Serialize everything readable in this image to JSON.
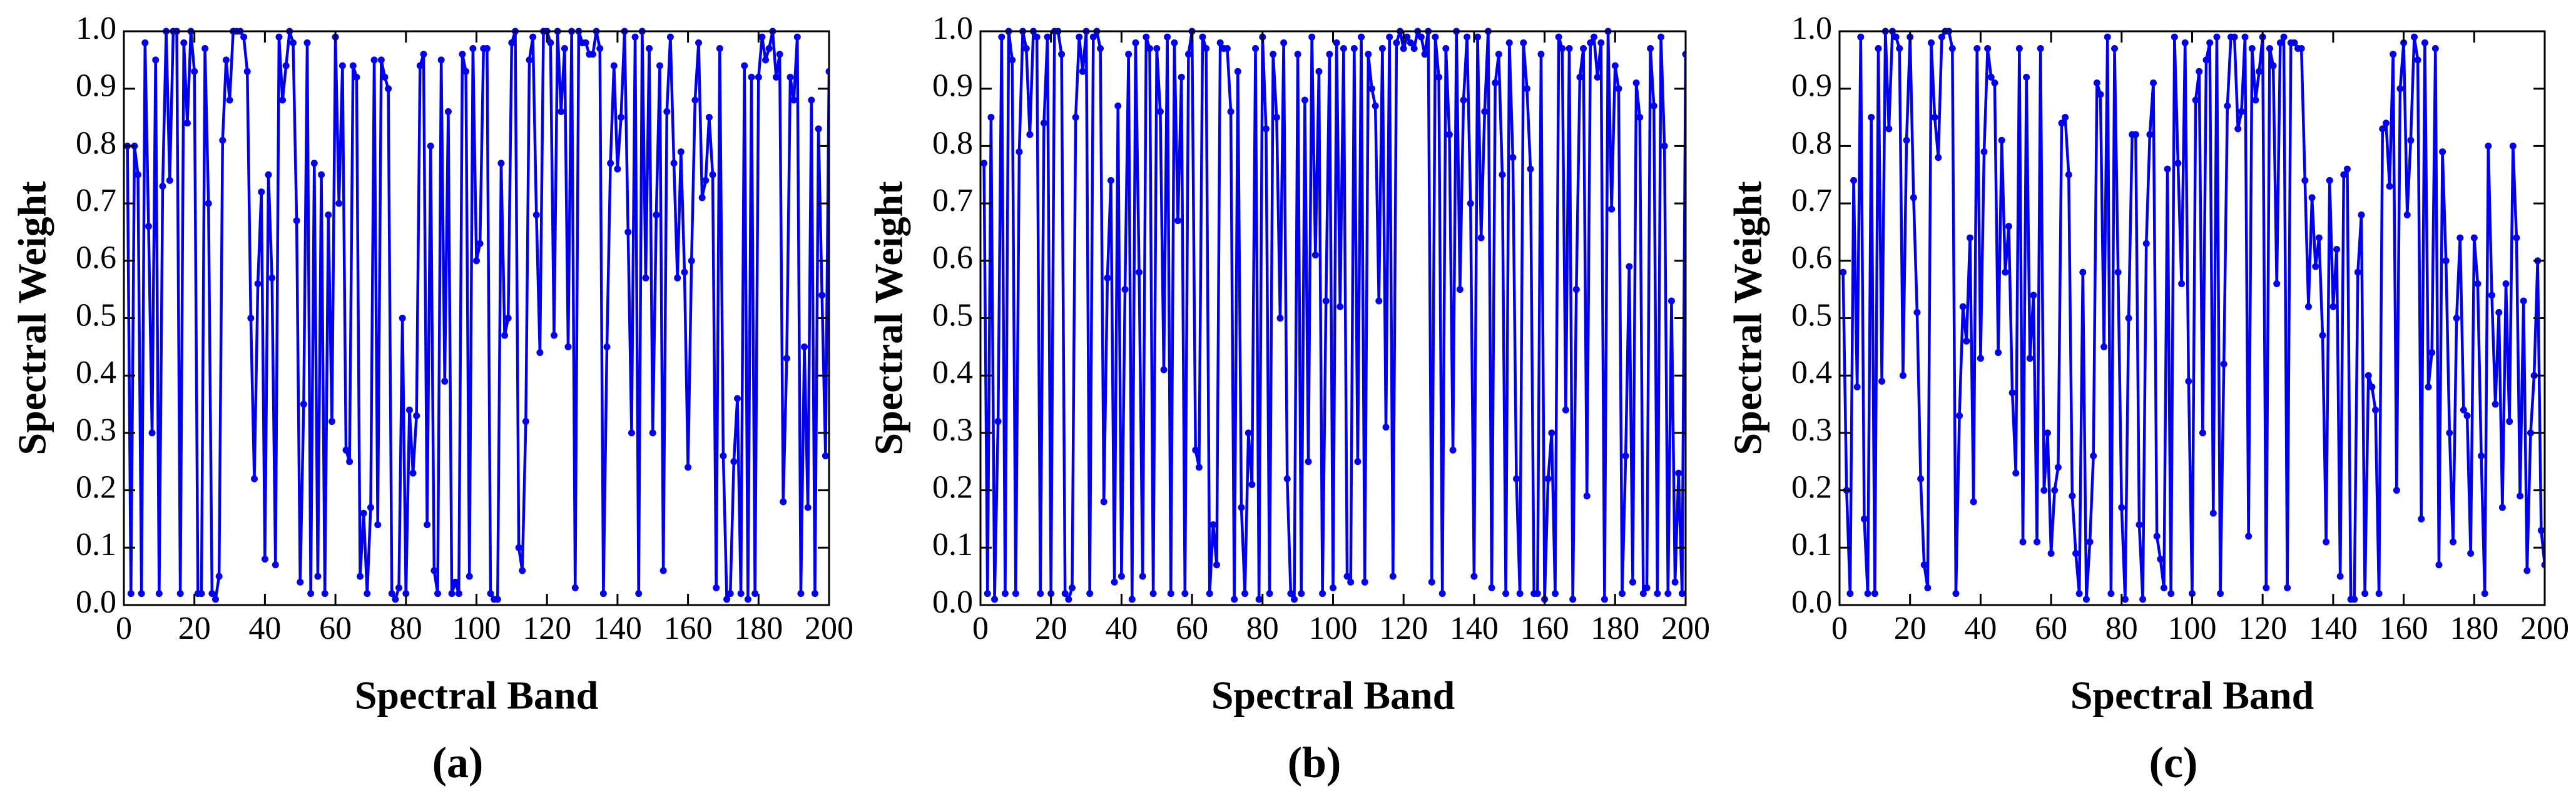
{
  "chart_data": [
    {
      "type": "line",
      "caption": "(a)",
      "xlabel": "Spectral Band",
      "ylabel": "Spectral Weight",
      "color": "#0000ee",
      "xlim": [
        0,
        200
      ],
      "xticks": [
        0,
        20,
        40,
        60,
        80,
        100,
        120,
        140,
        160,
        180,
        200
      ],
      "ylim": [
        0,
        1
      ],
      "yticks": [
        {
          "value": 0,
          "label": "0.0"
        },
        0.1,
        0.2,
        0.3,
        0.4,
        0.5,
        0.6,
        0.7,
        0.8,
        0.9,
        {
          "value": 1,
          "label": "1.0"
        }
      ],
      "x": [
        1,
        2,
        3,
        4,
        5,
        6,
        7,
        8,
        9,
        10,
        11,
        12,
        13,
        14,
        15,
        16,
        17,
        18,
        19,
        20,
        21,
        22,
        23,
        24,
        25,
        26,
        27,
        28,
        29,
        30,
        31,
        32,
        33,
        34,
        35,
        36,
        37,
        38,
        39,
        40,
        41,
        42,
        43,
        44,
        45,
        46,
        47,
        48,
        49,
        50,
        51,
        52,
        53,
        54,
        55,
        56,
        57,
        58,
        59,
        60,
        61,
        62,
        63,
        64,
        65,
        66,
        67,
        68,
        69,
        70,
        71,
        72,
        73,
        74,
        75,
        76,
        77,
        78,
        79,
        80,
        81,
        82,
        83,
        84,
        85,
        86,
        87,
        88,
        89,
        90,
        91,
        92,
        93,
        94,
        95,
        96,
        97,
        98,
        99,
        100,
        101,
        102,
        103,
        104,
        105,
        106,
        107,
        108,
        109,
        110,
        111,
        112,
        113,
        114,
        115,
        116,
        117,
        118,
        119,
        120,
        121,
        122,
        123,
        124,
        125,
        126,
        127,
        128,
        129,
        130,
        131,
        132,
        133,
        134,
        135,
        136,
        137,
        138,
        139,
        140,
        141,
        142,
        143,
        144,
        145,
        146,
        147,
        148,
        149,
        150,
        151,
        152,
        153,
        154,
        155,
        156,
        157,
        158,
        159,
        160,
        161,
        162,
        163,
        164,
        165,
        166,
        167,
        168,
        169,
        170,
        171,
        172,
        173,
        174,
        175,
        176,
        177,
        178,
        179,
        180,
        181,
        182,
        183,
        184,
        185,
        186,
        187,
        188,
        189,
        190,
        191,
        192,
        193,
        194,
        195,
        196,
        197,
        198,
        199,
        200
      ],
      "values": [
        0.8,
        0.02,
        0.8,
        0.75,
        0.02,
        0.98,
        0.66,
        0.3,
        0.95,
        0.02,
        0.73,
        1.0,
        0.74,
        1.0,
        1.0,
        0.02,
        0.98,
        0.84,
        1.0,
        0.93,
        0.02,
        0.02,
        0.97,
        0.7,
        0.02,
        0.01,
        0.05,
        0.81,
        0.95,
        0.88,
        1.0,
        1.0,
        1.0,
        0.99,
        0.93,
        0.5,
        0.22,
        0.56,
        0.72,
        0.08,
        0.75,
        0.57,
        0.07,
        0.99,
        0.88,
        0.94,
        1.0,
        0.98,
        0.67,
        0.04,
        0.35,
        0.98,
        0.02,
        0.77,
        0.05,
        0.75,
        0.02,
        0.68,
        0.32,
        0.99,
        0.7,
        0.94,
        0.27,
        0.25,
        0.94,
        0.92,
        0.05,
        0.16,
        0.02,
        0.17,
        0.95,
        0.14,
        0.95,
        0.92,
        0.9,
        0.02,
        0.01,
        0.03,
        0.5,
        0.02,
        0.34,
        0.23,
        0.33,
        0.94,
        0.96,
        0.14,
        0.8,
        0.06,
        0.02,
        0.95,
        0.39,
        0.86,
        0.02,
        0.04,
        0.02,
        0.96,
        0.93,
        0.05,
        0.97,
        0.6,
        0.63,
        0.97,
        0.97,
        0.02,
        0.01,
        0.01,
        0.77,
        0.47,
        0.5,
        0.98,
        1.0,
        0.1,
        0.06,
        0.32,
        0.95,
        0.99,
        0.68,
        0.44,
        1.0,
        1.0,
        0.98,
        0.47,
        1.0,
        0.86,
        0.97,
        0.45,
        1.0,
        0.03,
        1.0,
        0.98,
        0.98,
        0.96,
        0.96,
        1.0,
        0.97,
        0.02,
        0.45,
        0.77,
        0.94,
        0.76,
        0.85,
        1.0,
        0.65,
        0.3,
        0.99,
        0.02,
        1.0,
        0.57,
        0.97,
        0.3,
        0.68,
        0.94,
        0.06,
        0.86,
        0.99,
        0.77,
        0.57,
        0.79,
        0.58,
        0.24,
        0.6,
        0.88,
        0.98,
        0.71,
        0.74,
        0.85,
        0.75,
        0.03,
        0.97,
        0.26,
        0.01,
        0.02,
        0.25,
        0.36,
        0.02,
        0.94,
        0.01,
        0.92,
        0.02,
        0.92,
        0.99,
        0.95,
        0.97,
        1.0,
        0.92,
        0.96,
        0.18,
        0.43,
        0.92,
        0.88,
        0.99,
        0.02,
        0.45,
        0.17,
        0.88,
        0.02,
        0.83,
        0.54,
        0.26,
        0.93
      ]
    },
    {
      "type": "line",
      "caption": "(b)",
      "xlabel": "Spectral Band",
      "ylabel": "Spectral Weight",
      "color": "#0000ee",
      "xlim": [
        0,
        200
      ],
      "xticks": [
        0,
        20,
        40,
        60,
        80,
        100,
        120,
        140,
        160,
        180,
        200
      ],
      "ylim": [
        0,
        1
      ],
      "yticks": [
        {
          "value": 0,
          "label": "0.0"
        },
        0.1,
        0.2,
        0.3,
        0.4,
        0.5,
        0.6,
        0.7,
        0.8,
        0.9,
        {
          "value": 1,
          "label": "1.0"
        }
      ],
      "x": [
        1,
        2,
        3,
        4,
        5,
        6,
        7,
        8,
        9,
        10,
        11,
        12,
        13,
        14,
        15,
        16,
        17,
        18,
        19,
        20,
        21,
        22,
        23,
        24,
        25,
        26,
        27,
        28,
        29,
        30,
        31,
        32,
        33,
        34,
        35,
        36,
        37,
        38,
        39,
        40,
        41,
        42,
        43,
        44,
        45,
        46,
        47,
        48,
        49,
        50,
        51,
        52,
        53,
        54,
        55,
        56,
        57,
        58,
        59,
        60,
        61,
        62,
        63,
        64,
        65,
        66,
        67,
        68,
        69,
        70,
        71,
        72,
        73,
        74,
        75,
        76,
        77,
        78,
        79,
        80,
        81,
        82,
        83,
        84,
        85,
        86,
        87,
        88,
        89,
        90,
        91,
        92,
        93,
        94,
        95,
        96,
        97,
        98,
        99,
        100,
        101,
        102,
        103,
        104,
        105,
        106,
        107,
        108,
        109,
        110,
        111,
        112,
        113,
        114,
        115,
        116,
        117,
        118,
        119,
        120,
        121,
        122,
        123,
        124,
        125,
        126,
        127,
        128,
        129,
        130,
        131,
        132,
        133,
        134,
        135,
        136,
        137,
        138,
        139,
        140,
        141,
        142,
        143,
        144,
        145,
        146,
        147,
        148,
        149,
        150,
        151,
        152,
        153,
        154,
        155,
        156,
        157,
        158,
        159,
        160,
        161,
        162,
        163,
        164,
        165,
        166,
        167,
        168,
        169,
        170,
        171,
        172,
        173,
        174,
        175,
        176,
        177,
        178,
        179,
        180,
        181,
        182,
        183,
        184,
        185,
        186,
        187,
        188,
        189,
        190,
        191,
        192,
        193,
        194,
        195,
        196,
        197,
        198,
        199,
        200
      ],
      "values": [
        0.77,
        0.02,
        0.85,
        0.01,
        0.32,
        0.99,
        0.02,
        1.0,
        0.95,
        0.02,
        0.79,
        1.0,
        0.97,
        0.82,
        1.0,
        0.99,
        0.02,
        0.84,
        0.99,
        0.02,
        1.0,
        1.0,
        0.96,
        0.02,
        0.01,
        0.03,
        0.85,
        0.99,
        0.93,
        1.0,
        0.02,
        0.99,
        1.0,
        0.97,
        0.18,
        0.57,
        0.74,
        0.04,
        0.87,
        0.05,
        0.55,
        0.96,
        0.01,
        0.98,
        0.58,
        0.05,
        0.99,
        0.97,
        0.02,
        0.97,
        0.86,
        0.41,
        0.99,
        0.02,
        0.98,
        0.67,
        0.92,
        0.02,
        0.96,
        1.0,
        0.27,
        0.24,
        0.99,
        0.97,
        0.02,
        0.14,
        0.07,
        0.98,
        0.97,
        0.97,
        0.86,
        0.01,
        0.93,
        0.17,
        0.02,
        0.3,
        0.21,
        0.97,
        0.01,
        0.99,
        0.83,
        0.02,
        0.96,
        0.85,
        0.5,
        0.98,
        0.22,
        0.02,
        0.01,
        0.96,
        0.02,
        0.88,
        0.25,
        0.99,
        0.61,
        0.93,
        0.02,
        0.53,
        0.96,
        0.03,
        0.98,
        0.52,
        0.97,
        0.05,
        0.04,
        0.97,
        0.25,
        0.99,
        0.04,
        0.96,
        0.9,
        0.87,
        0.53,
        0.97,
        0.31,
        0.99,
        0.05,
        0.98,
        1.0,
        0.97,
        0.99,
        0.98,
        0.97,
        1.0,
        0.99,
        0.96,
        1.0,
        0.04,
        0.99,
        0.92,
        0.02,
        0.97,
        0.82,
        0.27,
        1.0,
        0.55,
        0.88,
        0.99,
        0.7,
        0.05,
        0.99,
        0.64,
        0.86,
        1.0,
        0.03,
        0.91,
        0.96,
        0.75,
        0.02,
        0.98,
        0.78,
        0.22,
        0.02,
        0.98,
        0.9,
        0.76,
        0.02,
        0.02,
        0.96,
        0.01,
        0.22,
        0.3,
        0.02,
        0.99,
        0.97,
        0.34,
        0.97,
        0.01,
        0.55,
        0.92,
        0.97,
        0.19,
        0.98,
        0.99,
        0.92,
        0.98,
        0.01,
        1.0,
        0.69,
        0.94,
        0.9,
        0.02,
        0.26,
        0.59,
        0.04,
        0.91,
        0.85,
        0.02,
        0.03,
        0.97,
        0.87,
        0.02,
        0.99,
        0.8,
        0.02,
        0.53,
        0.04,
        0.23,
        0.02,
        0.96
      ]
    },
    {
      "type": "line",
      "caption": "(c)",
      "xlabel": "Spectral Band",
      "ylabel": "Spectral Weight",
      "color": "#0000ee",
      "xlim": [
        0,
        200
      ],
      "xticks": [
        0,
        20,
        40,
        60,
        80,
        100,
        120,
        140,
        160,
        180,
        200
      ],
      "ylim": [
        0,
        1
      ],
      "yticks": [
        {
          "value": 0,
          "label": "0.0"
        },
        0.1,
        0.2,
        0.3,
        0.4,
        0.5,
        0.6,
        0.7,
        0.8,
        0.9,
        {
          "value": 1,
          "label": "1.0"
        }
      ],
      "x": [
        1,
        2,
        3,
        4,
        5,
        6,
        7,
        8,
        9,
        10,
        11,
        12,
        13,
        14,
        15,
        16,
        17,
        18,
        19,
        20,
        21,
        22,
        23,
        24,
        25,
        26,
        27,
        28,
        29,
        30,
        31,
        32,
        33,
        34,
        35,
        36,
        37,
        38,
        39,
        40,
        41,
        42,
        43,
        44,
        45,
        46,
        47,
        48,
        49,
        50,
        51,
        52,
        53,
        54,
        55,
        56,
        57,
        58,
        59,
        60,
        61,
        62,
        63,
        64,
        65,
        66,
        67,
        68,
        69,
        70,
        71,
        72,
        73,
        74,
        75,
        76,
        77,
        78,
        79,
        80,
        81,
        82,
        83,
        84,
        85,
        86,
        87,
        88,
        89,
        90,
        91,
        92,
        93,
        94,
        95,
        96,
        97,
        98,
        99,
        100,
        101,
        102,
        103,
        104,
        105,
        106,
        107,
        108,
        109,
        110,
        111,
        112,
        113,
        114,
        115,
        116,
        117,
        118,
        119,
        120,
        121,
        122,
        123,
        124,
        125,
        126,
        127,
        128,
        129,
        130,
        131,
        132,
        133,
        134,
        135,
        136,
        137,
        138,
        139,
        140,
        141,
        142,
        143,
        144,
        145,
        146,
        147,
        148,
        149,
        150,
        151,
        152,
        153,
        154,
        155,
        156,
        157,
        158,
        159,
        160,
        161,
        162,
        163,
        164,
        165,
        166,
        167,
        168,
        169,
        170,
        171,
        172,
        173,
        174,
        175,
        176,
        177,
        178,
        179,
        180,
        181,
        182,
        183,
        184,
        185,
        186,
        187,
        188,
        189,
        190,
        191,
        192,
        193,
        194,
        195,
        196,
        197,
        198,
        199,
        200
      ],
      "values": [
        0.58,
        0.2,
        0.02,
        0.74,
        0.38,
        0.99,
        0.15,
        0.02,
        0.85,
        0.02,
        0.97,
        0.39,
        1.0,
        0.83,
        1.0,
        0.99,
        0.97,
        0.4,
        0.81,
        0.99,
        0.71,
        0.51,
        0.22,
        0.07,
        0.03,
        0.98,
        0.85,
        0.78,
        0.99,
        1.0,
        1.0,
        0.97,
        0.02,
        0.33,
        0.52,
        0.46,
        0.64,
        0.18,
        0.97,
        0.43,
        0.79,
        0.97,
        0.92,
        0.91,
        0.44,
        0.81,
        0.58,
        0.66,
        0.37,
        0.23,
        0.97,
        0.11,
        0.92,
        0.43,
        0.54,
        0.11,
        0.97,
        0.2,
        0.3,
        0.09,
        0.2,
        0.24,
        0.84,
        0.85,
        0.75,
        0.19,
        0.09,
        0.02,
        0.58,
        0.01,
        0.11,
        0.26,
        0.91,
        0.89,
        0.45,
        0.99,
        0.02,
        0.97,
        0.58,
        0.17,
        0.01,
        0.5,
        0.82,
        0.82,
        0.14,
        0.01,
        0.63,
        0.82,
        0.91,
        0.12,
        0.08,
        0.03,
        0.76,
        0.02,
        0.99,
        0.77,
        0.56,
        0.98,
        0.39,
        0.02,
        0.88,
        0.93,
        0.3,
        0.95,
        0.98,
        0.16,
        0.99,
        0.02,
        0.42,
        0.87,
        0.99,
        0.99,
        0.83,
        0.86,
        0.99,
        0.12,
        0.97,
        0.88,
        0.93,
        0.99,
        0.03,
        0.97,
        0.94,
        0.56,
        0.98,
        0.99,
        0.03,
        0.98,
        0.98,
        0.97,
        0.97,
        0.74,
        0.52,
        0.71,
        0.59,
        0.64,
        0.47,
        0.11,
        0.74,
        0.52,
        0.62,
        0.05,
        0.75,
        0.76,
        0.01,
        0.01,
        0.58,
        0.68,
        0.02,
        0.4,
        0.38,
        0.34,
        0.02,
        0.83,
        0.84,
        0.73,
        0.96,
        0.2,
        0.9,
        0.98,
        0.68,
        0.81,
        0.99,
        0.95,
        0.15,
        0.98,
        0.38,
        0.44,
        0.97,
        0.07,
        0.79,
        0.6,
        0.3,
        0.11,
        0.5,
        0.64,
        0.34,
        0.33,
        0.09,
        0.64,
        0.56,
        0.26,
        0.02,
        0.8,
        0.54,
        0.35,
        0.51,
        0.17,
        0.56,
        0.32,
        0.8,
        0.64,
        0.19,
        0.53,
        0.06,
        0.3,
        0.4,
        0.6,
        0.13,
        0.07
      ]
    }
  ]
}
